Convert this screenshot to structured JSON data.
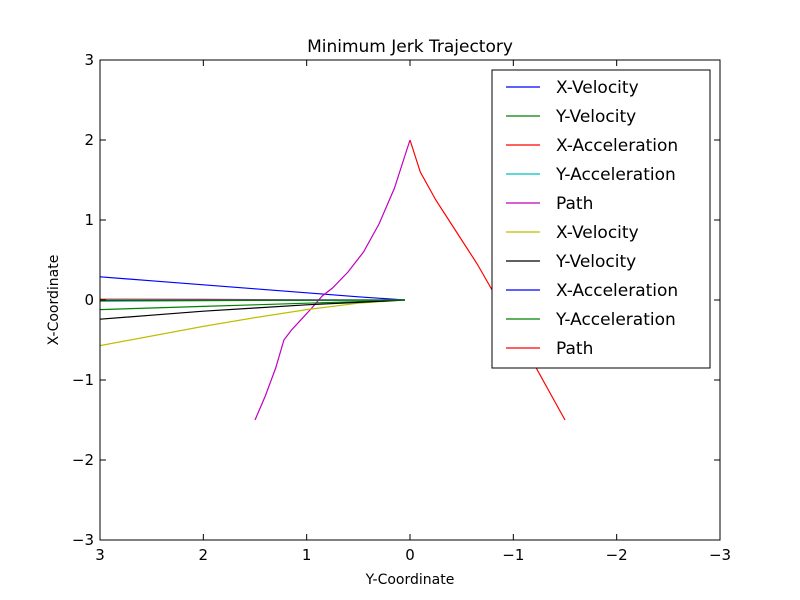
{
  "chart_data": {
    "type": "line",
    "title": "Minimum Jerk Trajectory",
    "xlabel": "Y-Coordinate",
    "ylabel": "X-Coordinate",
    "xlim": [
      3,
      -3
    ],
    "ylim": [
      -3,
      3
    ],
    "x_ticks": [
      3,
      2,
      1,
      0,
      -1,
      -2,
      -3
    ],
    "x_tick_labels": [
      "3",
      "2",
      "1",
      "0",
      "−1",
      "−2",
      "−3"
    ],
    "y_ticks": [
      3,
      2,
      1,
      0,
      -1,
      -2,
      -3
    ],
    "y_tick_labels": [
      "3",
      "2",
      "1",
      "0",
      "−1",
      "−2",
      "−3"
    ],
    "grid": false,
    "legend_placement": "top-right",
    "series": [
      {
        "name": "X-Velocity",
        "color": "#0000ff",
        "x": [
          0.05,
          0.5,
          1.0,
          1.5,
          2.0,
          2.5,
          3.0
        ],
        "y": [
          0.0,
          0.04,
          0.09,
          0.14,
          0.19,
          0.24,
          0.29
        ]
      },
      {
        "name": "Y-Velocity",
        "color": "#008000",
        "x": [
          0.05,
          0.5,
          1.0,
          1.5,
          2.0,
          2.5,
          3.0
        ],
        "y": [
          0.0,
          -0.02,
          -0.04,
          -0.06,
          -0.08,
          -0.1,
          -0.12
        ]
      },
      {
        "name": "X-Acceleration",
        "color": "#ff0000",
        "x": [
          0.05,
          1.0,
          2.0,
          3.0
        ],
        "y": [
          0.0,
          0.003,
          0.007,
          0.01
        ]
      },
      {
        "name": "Y-Acceleration",
        "color": "#00bfbf",
        "x": [
          0.05,
          1.0,
          2.0,
          3.0
        ],
        "y": [
          0.0,
          0.0,
          0.0,
          0.0
        ]
      },
      {
        "name": "Path",
        "color": "#bf00bf",
        "x": [
          1.5,
          1.4,
          1.3,
          1.22,
          1.15,
          1.05,
          0.95,
          0.85,
          0.75,
          0.6,
          0.45,
          0.3,
          0.15,
          0.05,
          0.0
        ],
        "y": [
          -1.5,
          -1.2,
          -0.85,
          -0.5,
          -0.38,
          -0.24,
          -0.1,
          0.05,
          0.15,
          0.35,
          0.6,
          0.95,
          1.4,
          1.8,
          2.0
        ]
      },
      {
        "name": "X-Velocity",
        "color": "#bfbf00",
        "x": [
          0.05,
          0.5,
          1.0,
          1.5,
          2.0,
          2.5,
          3.0
        ],
        "y": [
          0.0,
          -0.04,
          -0.12,
          -0.22,
          -0.33,
          -0.45,
          -0.57
        ]
      },
      {
        "name": "Y-Velocity",
        "color": "#000000",
        "x": [
          0.05,
          0.5,
          1.0,
          1.5,
          2.0,
          2.5,
          3.0
        ],
        "y": [
          0.0,
          -0.03,
          -0.06,
          -0.1,
          -0.14,
          -0.19,
          -0.24
        ]
      },
      {
        "name": "X-Acceleration",
        "color": "#0000ff",
        "x": [
          0.05,
          1.0,
          2.0,
          3.0
        ],
        "y": [
          0.0,
          -0.002,
          -0.005,
          -0.008
        ]
      },
      {
        "name": "Y-Acceleration",
        "color": "#008000",
        "x": [
          0.05,
          1.0,
          2.0,
          3.0
        ],
        "y": [
          0.0,
          -0.004,
          -0.008,
          -0.012
        ]
      },
      {
        "name": "Path",
        "color": "#ff0000",
        "x": [
          0.0,
          -0.1,
          -0.25,
          -0.45,
          -0.65,
          -0.85,
          -1.05,
          -1.2,
          -1.35,
          -1.5
        ],
        "y": [
          2.0,
          1.6,
          1.25,
          0.85,
          0.45,
          0.0,
          -0.45,
          -0.8,
          -1.15,
          -1.5
        ]
      }
    ]
  }
}
